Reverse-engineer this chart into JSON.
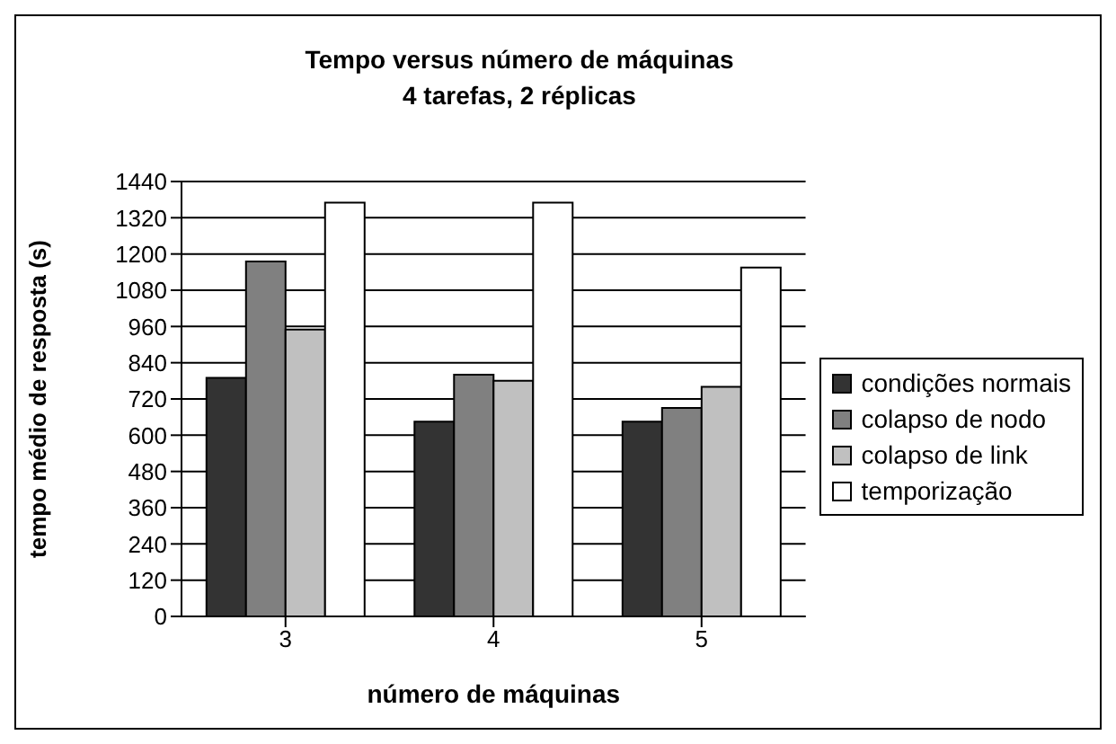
{
  "chart_data": {
    "type": "bar",
    "title": "Tempo versus número de máquinas",
    "subtitle": "4 tarefas, 2 réplicas",
    "xlabel": "número de máquinas",
    "ylabel": "tempo médio de resposta (s)",
    "categories": [
      "3",
      "4",
      "5"
    ],
    "series": [
      {
        "name": "condições normais",
        "color": "#333333",
        "values": [
          790,
          645,
          645
        ]
      },
      {
        "name": "colapso de nodo",
        "color": "#808080",
        "values": [
          1175,
          800,
          690
        ]
      },
      {
        "name": "colapso de link",
        "color": "#c0c0c0",
        "values": [
          950,
          780,
          760
        ]
      },
      {
        "name": "temporização",
        "color": "#ffffff",
        "values": [
          1370,
          1370,
          1155
        ]
      }
    ],
    "ylim": [
      0,
      1440
    ],
    "yticks": [
      0,
      120,
      240,
      360,
      480,
      600,
      720,
      840,
      960,
      1080,
      1200,
      1320,
      1440
    ],
    "grid": "y",
    "legend": "right"
  }
}
